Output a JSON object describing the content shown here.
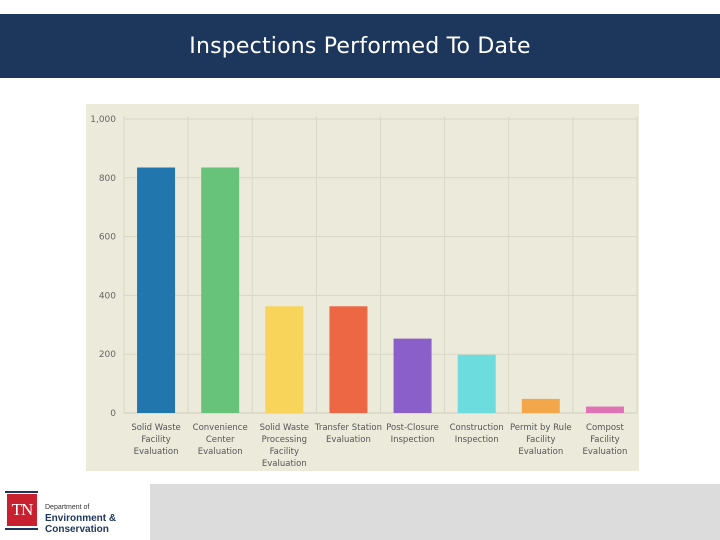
{
  "header": {
    "title": "Inspections Performed To Date"
  },
  "chart_data": {
    "type": "bar",
    "categories": [
      "Solid Waste Facility Evaluation",
      "Convenience Center Evaluation",
      "Solid Waste Processing Facility Evaluation",
      "Transfer Station Evaluation",
      "Post-Closure Inspection",
      "Construction Inspection",
      "Permit by Rule Facility Evaluation",
      "Compost Facility Evaluation"
    ],
    "category_lines": [
      [
        "Solid Waste",
        "Facility",
        "Evaluation"
      ],
      [
        "Convenience",
        "Center",
        "Evaluation"
      ],
      [
        "Solid Waste",
        "Processing",
        "Facility",
        "Evaluation"
      ],
      [
        "Transfer Station",
        "Evaluation"
      ],
      [
        "Post-Closure",
        "Inspection"
      ],
      [
        "Construction",
        "Inspection"
      ],
      [
        "Permit by Rule",
        "Facility",
        "Evaluation"
      ],
      [
        "Compost",
        "Facility",
        "Evaluation"
      ]
    ],
    "values": [
      835,
      835,
      363,
      363,
      253,
      198,
      48,
      22
    ],
    "colors": [
      "#2176ae",
      "#67c27a",
      "#f8d45a",
      "#ee6744",
      "#8a5fc9",
      "#6cdcdf",
      "#f3a74a",
      "#e072b6"
    ],
    "yticks": [
      0,
      200,
      400,
      600,
      800,
      1000
    ],
    "ytick_labels": [
      "0",
      "200",
      "400",
      "600",
      "800",
      "1,000"
    ],
    "ylim": [
      0,
      1000
    ],
    "xlabel": "",
    "ylabel": "",
    "grid": true,
    "background": "#eceadb",
    "legend": false
  },
  "footer": {
    "logo_mark": "TN",
    "dept_line": "Department of",
    "name_line1": "Environment &",
    "name_line2": "Conservation"
  }
}
